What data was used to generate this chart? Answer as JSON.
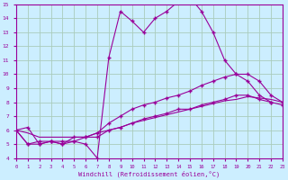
{
  "background_color": "#cceeff",
  "grid_color": "#aaccbb",
  "line_color": "#990099",
  "series1_x": [
    0,
    1,
    2,
    3,
    4,
    5,
    6,
    7,
    8,
    9,
    10,
    11,
    12,
    13,
    14,
    15,
    16,
    17,
    18,
    19,
    20,
    21,
    22,
    23
  ],
  "series1_y": [
    6.0,
    6.2,
    5.0,
    5.2,
    5.0,
    5.2,
    5.0,
    4.0,
    11.2,
    14.5,
    13.8,
    13.0,
    14.0,
    14.5,
    15.2,
    15.5,
    14.5,
    13.0,
    11.0,
    10.0,
    9.5,
    8.5,
    8.0,
    null
  ],
  "series2_x": [
    0,
    1,
    2,
    3,
    4,
    5,
    6,
    7,
    8,
    9,
    10,
    11,
    12,
    13,
    14,
    15,
    16,
    17,
    18,
    19,
    20,
    21,
    22,
    23
  ],
  "series2_y": [
    6.0,
    5.0,
    5.0,
    5.2,
    5.0,
    5.5,
    5.5,
    5.8,
    6.5,
    7.0,
    7.5,
    7.8,
    8.0,
    8.3,
    8.5,
    8.8,
    9.2,
    9.5,
    9.8,
    10.0,
    10.0,
    9.5,
    8.5,
    8.0
  ],
  "series3_x": [
    0,
    1,
    2,
    3,
    4,
    5,
    6,
    7,
    8,
    9,
    10,
    11,
    12,
    13,
    14,
    15,
    16,
    17,
    18,
    19,
    20,
    21,
    22,
    23
  ],
  "series3_y": [
    6.0,
    5.0,
    5.2,
    5.2,
    5.2,
    5.2,
    5.5,
    5.5,
    6.0,
    6.2,
    6.5,
    6.8,
    7.0,
    7.2,
    7.5,
    7.5,
    7.8,
    8.0,
    8.2,
    8.5,
    8.5,
    8.2,
    8.0,
    7.8
  ],
  "series4_x": [
    0,
    1,
    2,
    3,
    4,
    5,
    6,
    7,
    8,
    9,
    10,
    11,
    12,
    13,
    14,
    15,
    16,
    17,
    18,
    19,
    20,
    21,
    22,
    23
  ],
  "series4_y": [
    6.0,
    5.8,
    5.5,
    5.5,
    5.5,
    5.5,
    5.5,
    5.8,
    6.0,
    6.2,
    6.5,
    6.7,
    6.9,
    7.1,
    7.3,
    7.5,
    7.7,
    7.9,
    8.1,
    8.2,
    8.4,
    8.3,
    8.2,
    8.0
  ],
  "ylim": [
    4,
    15
  ],
  "xlim": [
    0,
    23
  ],
  "yticks": [
    4,
    5,
    6,
    7,
    8,
    9,
    10,
    11,
    12,
    13,
    14,
    15
  ],
  "xticks": [
    0,
    1,
    2,
    3,
    4,
    5,
    6,
    7,
    8,
    9,
    10,
    11,
    12,
    13,
    14,
    15,
    16,
    17,
    18,
    19,
    20,
    21,
    22,
    23
  ],
  "xlabel": "Windchill (Refroidissement éolien,°C)"
}
